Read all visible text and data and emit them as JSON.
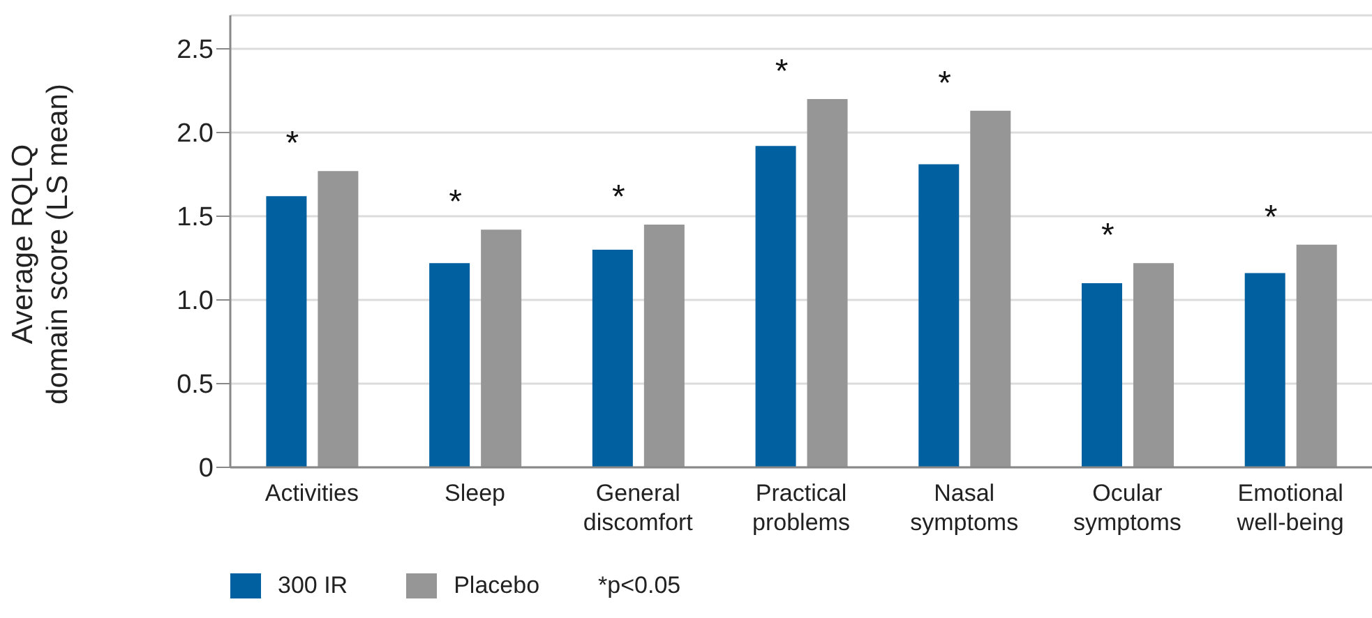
{
  "chart_data": {
    "type": "bar",
    "ylabel": "Average RQLQ domain score (LS mean)",
    "categories": [
      "Activities",
      "Sleep",
      "General discomfort",
      "Practical problems",
      "Nasal symptoms",
      "Ocular symptoms",
      "Emotional well-being"
    ],
    "series": [
      {
        "name": "300 IR",
        "color": "#0060a0",
        "values": [
          1.62,
          1.22,
          1.3,
          1.92,
          1.81,
          1.1,
          1.16
        ]
      },
      {
        "name": "Placebo",
        "color": "#969696",
        "values": [
          1.77,
          1.42,
          1.45,
          2.2,
          2.13,
          1.22,
          1.33
        ]
      }
    ],
    "ylim": [
      0,
      2.7
    ],
    "yticks": [
      0,
      0.5,
      {
        "value": 1,
        "label": "1.0"
      },
      1.5,
      {
        "value": 2,
        "label": "2.0"
      },
      2.5
    ],
    "grid": "y",
    "legend": "bottom",
    "annotations": [
      {
        "text": "*",
        "x": "Activities",
        "y": 1.77
      },
      {
        "text": "*",
        "x": "Sleep",
        "y": 1.42
      },
      {
        "text": "*",
        "x": "General discomfort",
        "y": 1.45
      },
      {
        "text": "*",
        "x": "Practical problems",
        "y": 2.2
      },
      {
        "text": "*",
        "x": "Nasal symptoms",
        "y": 2.13
      },
      {
        "text": "*",
        "x": "Ocular symptoms",
        "y": 1.22
      },
      {
        "text": "*",
        "x": "Emotional well-being",
        "y": 1.33
      },
      "*p<0.05"
    ]
  }
}
